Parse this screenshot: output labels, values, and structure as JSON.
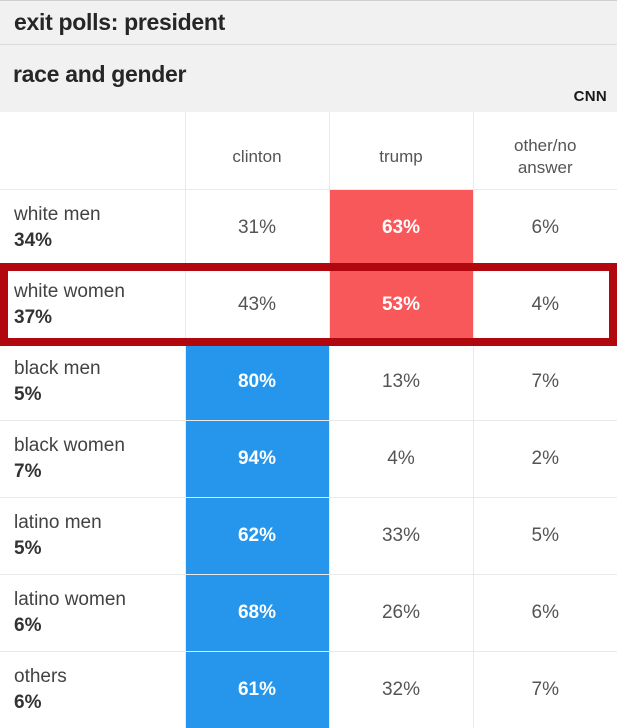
{
  "header": {
    "title": "exit polls: president",
    "subtitle": "race and gender",
    "brand": "CNN"
  },
  "table": {
    "columns": {
      "clinton": "clinton",
      "trump": "trump",
      "other": "other/no answer"
    },
    "rows": [
      {
        "label": "white men",
        "share": "34%",
        "values": {
          "clinton": "31%",
          "trump": "63%",
          "other": "6%"
        },
        "winner": "trump",
        "highlighted": false
      },
      {
        "label": "white women",
        "share": "37%",
        "values": {
          "clinton": "43%",
          "trump": "53%",
          "other": "4%"
        },
        "winner": "trump",
        "highlighted": true
      },
      {
        "label": "black men",
        "share": "5%",
        "values": {
          "clinton": "80%",
          "trump": "13%",
          "other": "7%"
        },
        "winner": "clinton",
        "highlighted": false
      },
      {
        "label": "black women",
        "share": "7%",
        "values": {
          "clinton": "94%",
          "trump": "4%",
          "other": "2%"
        },
        "winner": "clinton",
        "highlighted": false
      },
      {
        "label": "latino men",
        "share": "5%",
        "values": {
          "clinton": "62%",
          "trump": "33%",
          "other": "5%"
        },
        "winner": "clinton",
        "highlighted": false
      },
      {
        "label": "latino women",
        "share": "6%",
        "values": {
          "clinton": "68%",
          "trump": "26%",
          "other": "6%"
        },
        "winner": "clinton",
        "highlighted": false
      },
      {
        "label": "others",
        "share": "6%",
        "values": {
          "clinton": "61%",
          "trump": "32%",
          "other": "7%"
        },
        "winner": "clinton",
        "highlighted": false
      }
    ]
  },
  "colors": {
    "clinton_highlight": "#2596ec",
    "trump_highlight": "#f9585a",
    "row_highlight_border": "#b1080f",
    "header_band_bg": "#f1f1f1",
    "cell_border": "#e9e9e9"
  },
  "chart_data": {
    "type": "table",
    "title": "exit polls: president",
    "subtitle": "race and gender",
    "source": "CNN",
    "columns": [
      "clinton",
      "trump",
      "other/no answer"
    ],
    "rows": [
      {
        "group": "white men",
        "group_share_pct": 34,
        "clinton": 31,
        "trump": 63,
        "other_no_answer": 6
      },
      {
        "group": "white women",
        "group_share_pct": 37,
        "clinton": 43,
        "trump": 53,
        "other_no_answer": 4
      },
      {
        "group": "black men",
        "group_share_pct": 5,
        "clinton": 80,
        "trump": 13,
        "other_no_answer": 7
      },
      {
        "group": "black women",
        "group_share_pct": 7,
        "clinton": 94,
        "trump": 4,
        "other_no_answer": 2
      },
      {
        "group": "latino men",
        "group_share_pct": 5,
        "clinton": 62,
        "trump": 33,
        "other_no_answer": 5
      },
      {
        "group": "latino women",
        "group_share_pct": 6,
        "clinton": 68,
        "trump": 26,
        "other_no_answer": 6
      },
      {
        "group": "others",
        "group_share_pct": 6,
        "clinton": 61,
        "trump": 32,
        "other_no_answer": 7
      }
    ],
    "notes": "winning candidate cell shaded per row: blue = clinton, red = trump; white women row outlined in dark red"
  }
}
